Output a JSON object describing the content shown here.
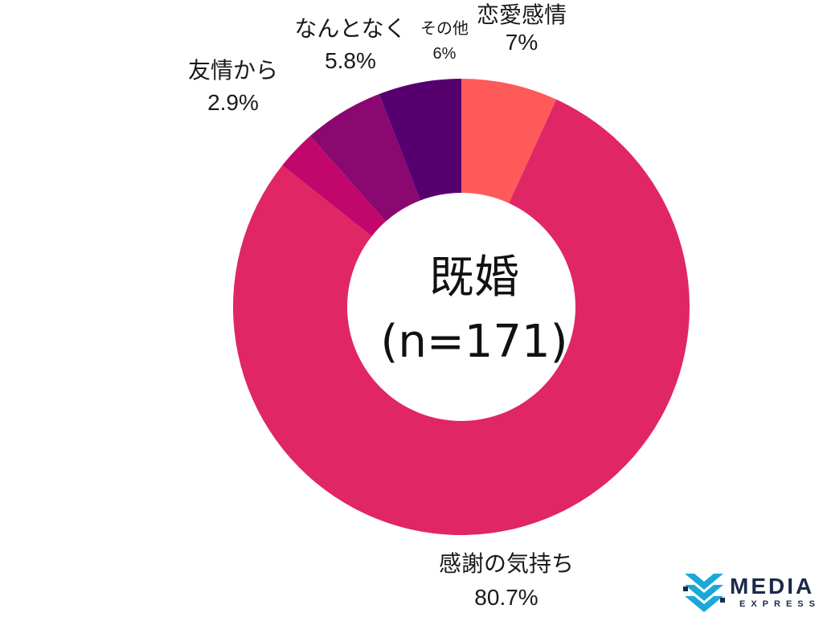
{
  "center": {
    "line1": "既婚",
    "line2": "(n=171)"
  },
  "chart_data": {
    "type": "pie",
    "style": "donut",
    "start": "top, clockwise",
    "slices": [
      {
        "label": "恋愛感情",
        "value": 7,
        "value_label": "7%",
        "color": "#ff5a5a"
      },
      {
        "label": "感謝の気持ち",
        "value": 80.7,
        "value_label": "80.7%",
        "color": "#e02665"
      },
      {
        "label": "友情から",
        "value": 2.9,
        "value_label": "2.9%",
        "color": "#c2076c"
      },
      {
        "label": "なんとなく",
        "value": 5.8,
        "value_label": "5.8%",
        "color": "#8b0870"
      },
      {
        "label": "その他",
        "value": 6,
        "value_label": "6%",
        "color": "#560070"
      }
    ]
  },
  "logo": {
    "name": "MEDIA",
    "sub": "EXPRESS",
    "icon": "stacked-chevron-logo-icon",
    "colors": [
      "#1ba8d8",
      "#1b2a4a"
    ]
  }
}
